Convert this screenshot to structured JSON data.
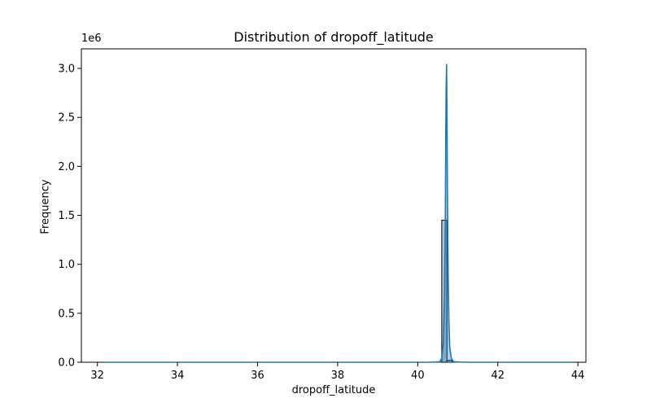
{
  "chart_data": {
    "type": "bar",
    "title": "Distribution of dropoff_latitude",
    "xlabel": "dropoff_latitude",
    "ylabel": "Frequency",
    "y_offset_label": "1e6",
    "xlim": [
      31.6,
      44.2
    ],
    "ylim": [
      0,
      3200000
    ],
    "xticks": [
      32,
      34,
      36,
      38,
      40,
      42,
      44
    ],
    "yticks": [
      0,
      500000,
      1000000,
      1500000,
      2000000,
      2500000,
      3000000
    ],
    "ytick_labels": [
      "0.0",
      "0.5",
      "1.0",
      "1.5",
      "2.0",
      "2.5",
      "3.0"
    ],
    "histogram": {
      "bins": [
        {
          "x0": 40.47,
          "x1": 40.6,
          "count": 0
        },
        {
          "x0": 40.6,
          "x1": 40.73,
          "count": 1450000
        },
        {
          "x0": 40.73,
          "x1": 40.86,
          "count": 20000
        },
        {
          "x0": 40.86,
          "x1": 40.99,
          "count": 0
        }
      ]
    },
    "kde": {
      "x": [
        32.15,
        40.3,
        40.55,
        40.6,
        40.64,
        40.67,
        40.69,
        40.7,
        40.71,
        40.72,
        40.73,
        40.74,
        40.76,
        40.78,
        40.8,
        40.84,
        40.9,
        41.2,
        43.9
      ],
      "y": [
        0,
        0,
        5000,
        40000,
        200000,
        700000,
        1500000,
        2300000,
        2800000,
        3040000,
        2600000,
        1800000,
        900000,
        400000,
        150000,
        40000,
        5000,
        0,
        0
      ]
    },
    "grid": false,
    "colors": {
      "bar": "#a9c6de",
      "bar_edge": "#000000",
      "kde": "#1f77b4",
      "fill": "#1f77b4"
    }
  }
}
